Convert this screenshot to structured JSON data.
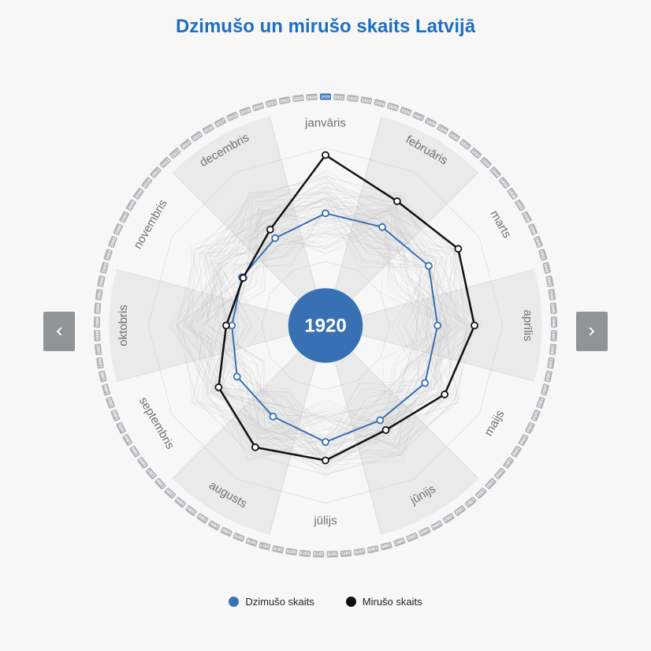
{
  "title": "Dzimušo un mirušo skaits Latvijā",
  "chart": {
    "type": "radar",
    "center_label": "1920",
    "center_circle_color": "#3770b3",
    "background_color": "#f7f7f7",
    "wedge_color": "#e8e8e8",
    "ring_color": "#c9c9c9",
    "months": [
      "janvāris",
      "februāris",
      "marts",
      "aprīlis",
      "maijs",
      "jūnijs",
      "jūlijs",
      "augusts",
      "septembris",
      "oktobris",
      "novembris",
      "decembris"
    ],
    "month_label_color": "#707070",
    "month_label_fontsize": 15,
    "n_rings": 5,
    "max_radius": 225,
    "background_line_color": "#bdbdbd",
    "background_line_opacity": 0.35,
    "background_line_count": 60,
    "series": [
      {
        "name": "Dzimušo skaits",
        "color": "#3770b3",
        "marker_fill": "#ffffff",
        "line_width": 2,
        "values": [
          0.54,
          0.55,
          0.59,
          0.54,
          0.56,
          0.52,
          0.57,
          0.49,
          0.47,
          0.41,
          0.43,
          0.46
        ]
      },
      {
        "name": "Mirušo skaits",
        "color": "#111111",
        "marker_fill": "#ffffff",
        "line_width": 2.5,
        "values": [
          0.95,
          0.76,
          0.83,
          0.8,
          0.72,
          0.6,
          0.7,
          0.74,
          0.62,
          0.45,
          0.42,
          0.53
        ]
      }
    ],
    "year_ring": {
      "radius": 290,
      "pill_color": "#aeb2b6",
      "pill_color_selected": "#3770b3",
      "pill_text_color": "#ffffff",
      "years_start": 1920,
      "years_end": 2024,
      "selected_year": 1920
    }
  },
  "legend": {
    "items": [
      {
        "label": "Dzimušo skaits",
        "color": "#3770b3"
      },
      {
        "label": "Mirušo skaits",
        "color": "#111111"
      }
    ],
    "fontsize": 13
  },
  "nav": {
    "button_bg": "#8f9498",
    "icon_color": "#ffffff"
  }
}
